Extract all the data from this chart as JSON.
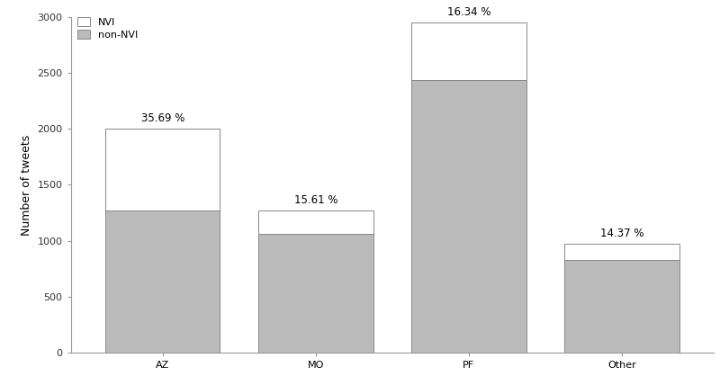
{
  "categories": [
    "AZ",
    "MO",
    "PF",
    "Other"
  ],
  "non_nvi": [
    1270,
    1065,
    2440,
    830
  ],
  "nvi": [
    730,
    205,
    510,
    140
  ],
  "percentages": [
    "35.69 %",
    "15.61 %",
    "16.34 %",
    "14.37 %"
  ],
  "bar_color_nvi": "#ffffff",
  "bar_color_non_nvi": "#bbbbbb",
  "bar_edgecolor": "#888888",
  "ylabel": "Number of tweets",
  "ylim": [
    0,
    3000
  ],
  "yticks": [
    0,
    500,
    1000,
    1500,
    2000,
    2500,
    3000
  ],
  "background_color": "#ffffff",
  "bar_width": 0.75,
  "label_fontsize": 8.5,
  "tick_fontsize": 8,
  "ylabel_fontsize": 9,
  "other_label_color": "#3355bb",
  "spine_color": "#999999",
  "tick_color": "#333333"
}
